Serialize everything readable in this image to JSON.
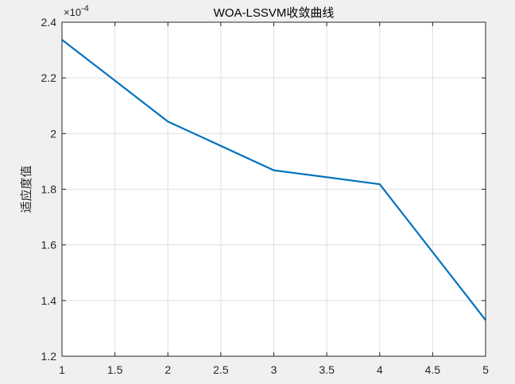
{
  "chart_data": {
    "type": "line",
    "title": "WOA-LSSVM收敛曲线",
    "xlabel": "",
    "ylabel": "适应度值",
    "y_exponent": {
      "base": "×10",
      "power": "-4"
    },
    "xlim": [
      1,
      5
    ],
    "ylim": [
      1.2,
      2.4
    ],
    "x_ticks": [
      1,
      1.5,
      2,
      2.5,
      3,
      3.5,
      4,
      4.5,
      5
    ],
    "x_tick_labels": [
      "1",
      "1.5",
      "2",
      "2.5",
      "3",
      "3.5",
      "4",
      "4.5",
      "5"
    ],
    "y_ticks": [
      1.2,
      1.4,
      1.6,
      1.8,
      2.0,
      2.2,
      2.4
    ],
    "y_tick_labels": [
      "1.2",
      "1.4",
      "1.6",
      "1.8",
      "2",
      "2.2",
      "2.4"
    ],
    "grid": true,
    "series": [
      {
        "x": [
          1,
          2,
          3,
          4,
          5
        ],
        "y": [
          2.337,
          2.043,
          1.868,
          1.818,
          1.33
        ],
        "color": "#0072bd"
      }
    ]
  }
}
